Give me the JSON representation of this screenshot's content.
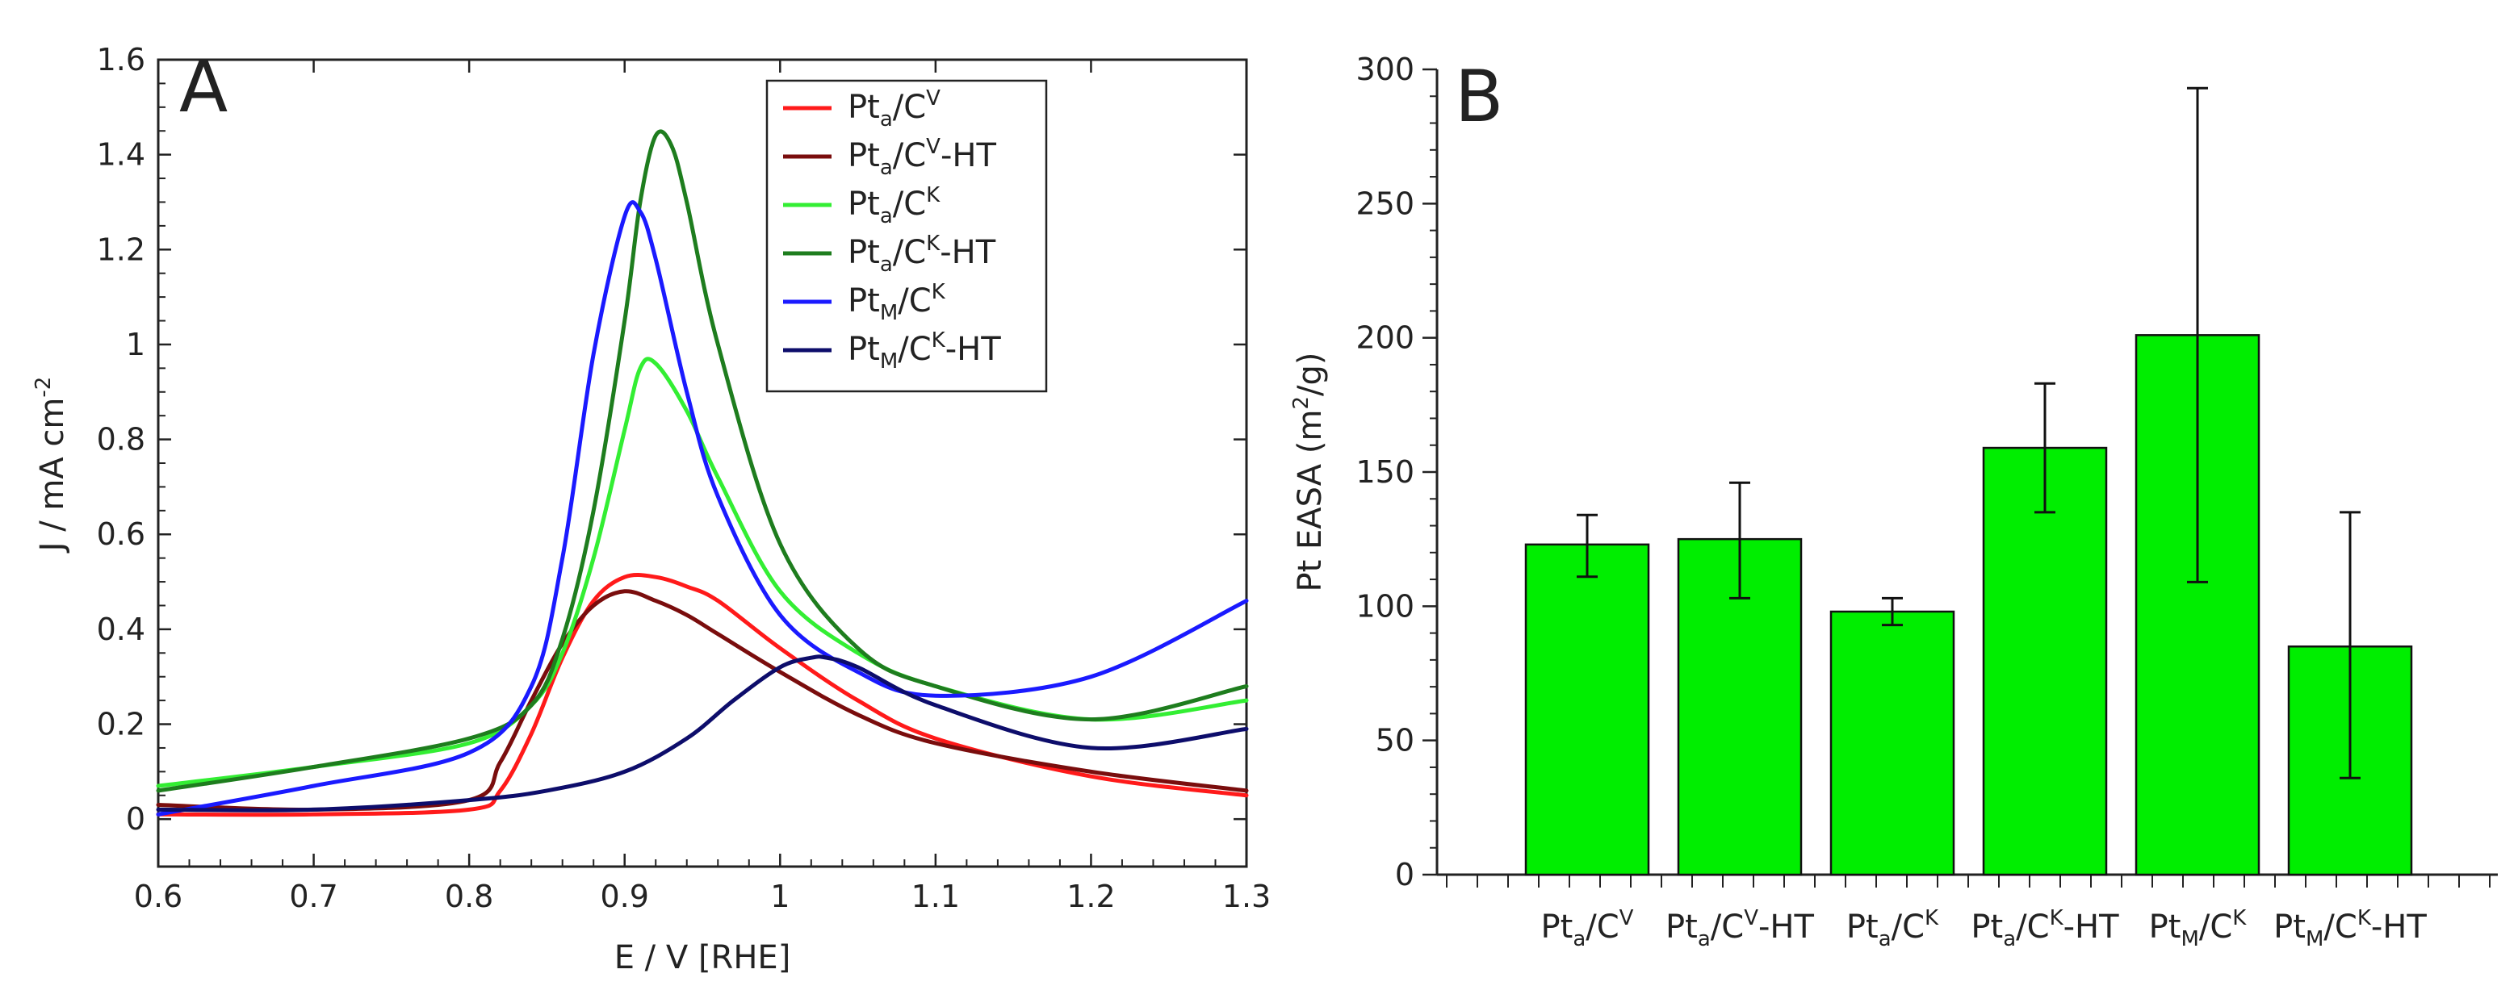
{
  "chart_data": [
    {
      "panel": "A",
      "type": "line",
      "xlabel": "E / V [RHE]",
      "ylabel": "J / mA cm",
      "ylabel_sup": "-2",
      "xlim": [
        0.6,
        1.3
      ],
      "ylim": [
        -0.1,
        1.6
      ],
      "xticks": [
        0.6,
        0.7,
        0.8,
        0.9,
        1,
        1.1,
        1.2,
        1.3
      ],
      "xtick_labels": [
        "0.6",
        "0.7",
        "0.8",
        "0.9",
        "1",
        "1.1",
        "1.2",
        "1.3"
      ],
      "yticks": [
        0,
        0.2,
        0.4,
        0.6,
        0.8,
        1,
        1.2,
        1.4,
        1.6
      ],
      "ytick_labels": [
        "0",
        "0.2",
        "0.4",
        "0.6",
        "0.8",
        "1",
        "1.2",
        "1.4",
        "1.6"
      ],
      "legend_position": "top-right",
      "series": [
        {
          "name": "Pt",
          "sub": "a",
          "rest": "/C",
          "sup": "V",
          "tail": "",
          "color": "#ff1a1a",
          "x": [
            0.6,
            0.7,
            0.8,
            0.82,
            0.84,
            0.86,
            0.88,
            0.9,
            0.92,
            0.94,
            0.96,
            1.0,
            1.05,
            1.1,
            1.2,
            1.3
          ],
          "y": [
            0.01,
            0.01,
            0.02,
            0.06,
            0.18,
            0.34,
            0.46,
            0.51,
            0.51,
            0.49,
            0.46,
            0.36,
            0.25,
            0.17,
            0.09,
            0.05
          ]
        },
        {
          "name": "Pt",
          "sub": "a",
          "rest": "/C",
          "sup": "V",
          "tail": "-HT",
          "color": "#7a0d0d",
          "x": [
            0.6,
            0.7,
            0.8,
            0.82,
            0.84,
            0.86,
            0.88,
            0.9,
            0.92,
            0.94,
            0.96,
            1.0,
            1.05,
            1.1,
            1.2,
            1.3
          ],
          "y": [
            0.03,
            0.02,
            0.04,
            0.12,
            0.25,
            0.37,
            0.45,
            0.48,
            0.46,
            0.43,
            0.39,
            0.31,
            0.22,
            0.16,
            0.1,
            0.06
          ]
        },
        {
          "name": "Pt",
          "sub": "a",
          "rest": "/C",
          "sup": "K",
          "tail": "",
          "color": "#33ee33",
          "x": [
            0.6,
            0.7,
            0.8,
            0.84,
            0.86,
            0.88,
            0.9,
            0.91,
            0.92,
            0.94,
            0.96,
            1.0,
            1.05,
            1.1,
            1.2,
            1.3
          ],
          "y": [
            0.07,
            0.11,
            0.16,
            0.24,
            0.35,
            0.55,
            0.82,
            0.95,
            0.96,
            0.86,
            0.72,
            0.48,
            0.35,
            0.28,
            0.21,
            0.25
          ]
        },
        {
          "name": "Pt",
          "sub": "a",
          "rest": "/C",
          "sup": "K",
          "tail": "-HT",
          "color": "#1e7d1e",
          "x": [
            0.6,
            0.7,
            0.8,
            0.84,
            0.86,
            0.88,
            0.9,
            0.91,
            0.92,
            0.93,
            0.94,
            0.96,
            1.0,
            1.05,
            1.1,
            1.2,
            1.3
          ],
          "y": [
            0.06,
            0.11,
            0.17,
            0.24,
            0.38,
            0.65,
            1.05,
            1.3,
            1.44,
            1.42,
            1.3,
            1.0,
            0.58,
            0.36,
            0.28,
            0.21,
            0.28
          ]
        },
        {
          "name": "Pt",
          "sub": "M",
          "rest": "/C",
          "sup": "K",
          "tail": "",
          "color": "#1a1aff",
          "x": [
            0.6,
            0.7,
            0.8,
            0.84,
            0.86,
            0.88,
            0.9,
            0.91,
            0.92,
            0.94,
            0.96,
            1.0,
            1.05,
            1.1,
            1.2,
            1.3
          ],
          "y": [
            0.01,
            0.07,
            0.14,
            0.28,
            0.55,
            0.98,
            1.27,
            1.28,
            1.18,
            0.9,
            0.68,
            0.43,
            0.31,
            0.26,
            0.3,
            0.46
          ]
        },
        {
          "name": "Pt",
          "sub": "M",
          "rest": "/C",
          "sup": "K",
          "tail": "-HT",
          "color": "#0d0d6b",
          "x": [
            0.6,
            0.7,
            0.8,
            0.85,
            0.9,
            0.94,
            0.97,
            1.0,
            1.02,
            1.03,
            1.05,
            1.1,
            1.2,
            1.3
          ],
          "y": [
            0.02,
            0.02,
            0.04,
            0.06,
            0.1,
            0.17,
            0.25,
            0.32,
            0.34,
            0.34,
            0.32,
            0.24,
            0.15,
            0.19
          ]
        }
      ]
    },
    {
      "panel": "B",
      "type": "bar",
      "ylabel": "Pt EASA (m",
      "ylabel_sup": "2",
      "ylabel_tail": "/g)",
      "ylim": [
        0,
        300
      ],
      "yticks": [
        0,
        50,
        100,
        150,
        200,
        250,
        300
      ],
      "ytick_labels": [
        "0",
        "50",
        "100",
        "150",
        "200",
        "250",
        "300"
      ],
      "bar_color": "#00ee00",
      "categories": [
        {
          "name": "Pt",
          "sub": "a",
          "rest": "/C",
          "sup": "V",
          "tail": ""
        },
        {
          "name": "Pt",
          "sub": "a",
          "rest": "/C",
          "sup": "V",
          "tail": "-HT"
        },
        {
          "name": "Pt",
          "sub": "a",
          "rest": "/C",
          "sup": "K",
          "tail": ""
        },
        {
          "name": "Pt",
          "sub": "a",
          "rest": "/C",
          "sup": "K",
          "tail": "-HT"
        },
        {
          "name": "Pt",
          "sub": "M",
          "rest": "/C",
          "sup": "K",
          "tail": ""
        },
        {
          "name": "Pt",
          "sub": "M",
          "rest": "/C",
          "sup": "K",
          "tail": "-HT"
        }
      ],
      "values": [
        123,
        125,
        98,
        159,
        201,
        85
      ],
      "err_low": [
        111,
        103,
        93,
        135,
        109,
        36
      ],
      "err_high": [
        134,
        146,
        103,
        183,
        293,
        135
      ]
    }
  ]
}
